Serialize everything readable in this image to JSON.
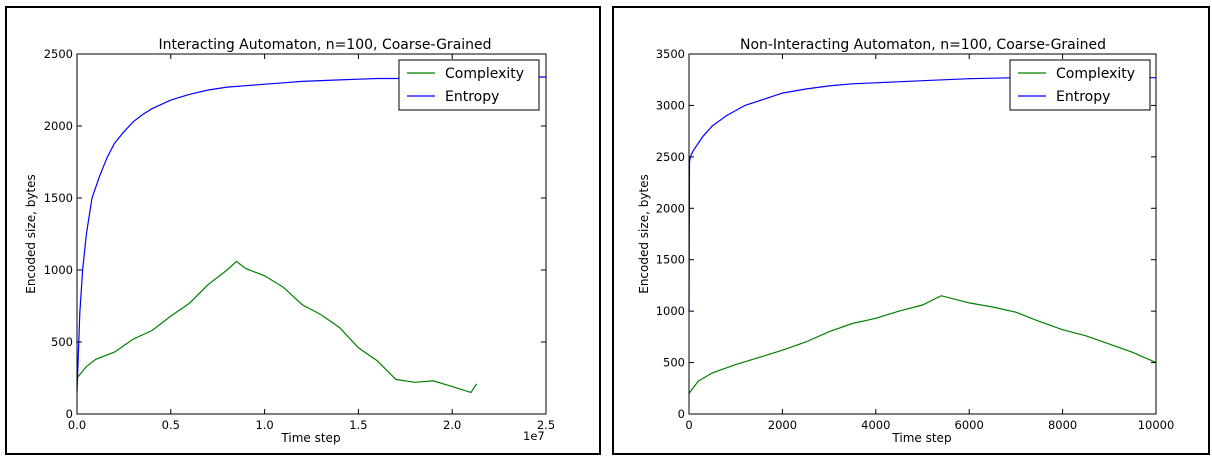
{
  "chart_data": [
    {
      "type": "line",
      "title": "Interacting Automaton, n=100, Coarse-Grained",
      "xlabel": "Time step",
      "ylabel": "Encoded size, bytes",
      "x_offset_label": "1e7",
      "xlim": [
        0,
        25000000
      ],
      "ylim": [
        0,
        2500
      ],
      "x_ticks": [
        0,
        5000000,
        10000000,
        15000000,
        20000000,
        25000000
      ],
      "x_tick_labels": [
        "0.0",
        "0.5",
        "1.0",
        "1.5",
        "2.0",
        "2.5"
      ],
      "y_ticks": [
        0,
        500,
        1000,
        1500,
        2000,
        2500
      ],
      "y_tick_labels": [
        "0",
        "500",
        "1000",
        "1500",
        "2000",
        "2500"
      ],
      "legend_position": "top-right",
      "grid": false,
      "series": [
        {
          "name": "Complexity",
          "color": "#008000",
          "x": [
            0,
            500000,
            1000000,
            2000000,
            3000000,
            4000000,
            5000000,
            6000000,
            7000000,
            8000000,
            8500000,
            9000000,
            10000000,
            11000000,
            12000000,
            13000000,
            14000000,
            15000000,
            16000000,
            17000000,
            18000000,
            19000000,
            20000000,
            21000000,
            21300000
          ],
          "y": [
            250,
            330,
            380,
            430,
            520,
            580,
            680,
            770,
            900,
            1000,
            1060,
            1010,
            960,
            880,
            760,
            690,
            600,
            460,
            370,
            240,
            220,
            230,
            190,
            150,
            210
          ]
        },
        {
          "name": "Entropy",
          "color": "#0000ff",
          "x": [
            0,
            150000,
            300000,
            500000,
            800000,
            1200000,
            1600000,
            2000000,
            2500000,
            3000000,
            3500000,
            4000000,
            5000000,
            6000000,
            7000000,
            8000000,
            9000000,
            10000000,
            11000000,
            12000000,
            13000000,
            14000000,
            15000000,
            16000000,
            17000000,
            18000000,
            19000000,
            20000000,
            21000000,
            22000000,
            23000000,
            24000000,
            25000000
          ],
          "y": [
            150,
            700,
            1000,
            1250,
            1500,
            1650,
            1780,
            1880,
            1960,
            2030,
            2080,
            2120,
            2180,
            2220,
            2250,
            2270,
            2280,
            2290,
            2300,
            2310,
            2315,
            2320,
            2325,
            2330,
            2330,
            2335,
            2335,
            2335,
            2340,
            2340,
            2340,
            2340,
            2340
          ]
        }
      ]
    },
    {
      "type": "line",
      "title": "Non-Interacting Automaton, n=100, Coarse-Grained",
      "xlabel": "Time step",
      "ylabel": "Encoded size, bytes",
      "xlim": [
        0,
        10000
      ],
      "ylim": [
        0,
        3500
      ],
      "x_ticks": [
        0,
        2000,
        4000,
        6000,
        8000,
        10000
      ],
      "x_tick_labels": [
        "0",
        "2000",
        "4000",
        "6000",
        "8000",
        "10000"
      ],
      "y_ticks": [
        0,
        500,
        1000,
        1500,
        2000,
        2500,
        3000,
        3500
      ],
      "y_tick_labels": [
        "0",
        "500",
        "1000",
        "1500",
        "2000",
        "2500",
        "3000",
        "3500"
      ],
      "legend_position": "top-right",
      "grid": false,
      "series": [
        {
          "name": "Complexity",
          "color": "#008000",
          "x": [
            0,
            200,
            500,
            1000,
            1500,
            2000,
            2500,
            3000,
            3500,
            4000,
            4500,
            5000,
            5400,
            6000,
            6500,
            7000,
            7500,
            8000,
            8500,
            9000,
            9500,
            10000
          ],
          "y": [
            200,
            320,
            400,
            480,
            550,
            620,
            700,
            800,
            880,
            930,
            1000,
            1060,
            1150,
            1080,
            1040,
            990,
            900,
            820,
            760,
            680,
            600,
            500
          ]
        },
        {
          "name": "Entropy",
          "color": "#0000ff",
          "x": [
            0,
            10,
            30,
            80,
            150,
            300,
            500,
            800,
            1200,
            1600,
            2000,
            2500,
            3000,
            3500,
            4000,
            5000,
            6000,
            7000,
            8000,
            9000,
            10000
          ],
          "y": [
            1000,
            2450,
            2500,
            2550,
            2600,
            2700,
            2800,
            2900,
            3000,
            3060,
            3120,
            3160,
            3190,
            3210,
            3220,
            3240,
            3260,
            3270,
            3270,
            3270,
            3270
          ]
        }
      ]
    }
  ]
}
